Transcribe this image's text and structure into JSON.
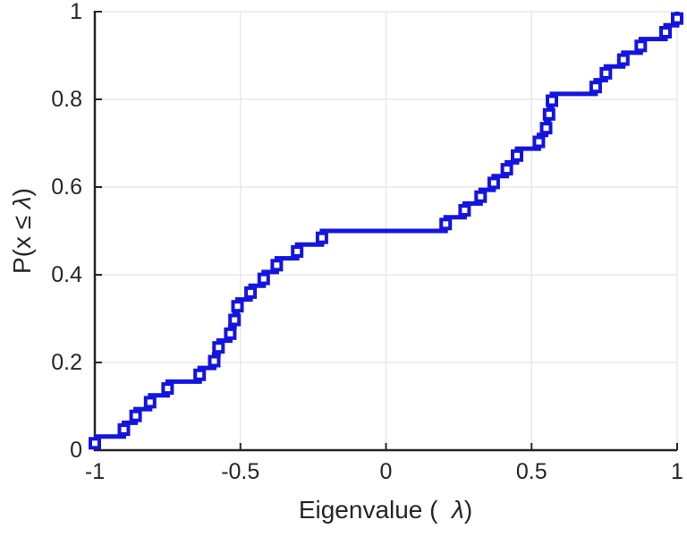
{
  "chart_data": {
    "type": "line",
    "subtype": "ecdf-stairs",
    "title": "",
    "xlabel": {
      "prefix": "Eigenvalue (  ",
      "lambda": "λ",
      "suffix": ")"
    },
    "ylabel": {
      "prefix": "P(x ≤ ",
      "lambda": "λ",
      "suffix": ")"
    },
    "n_points": 32,
    "eigenvalues": [
      -1.0,
      -0.9,
      -0.86,
      -0.81,
      -0.75,
      -0.64,
      -0.59,
      -0.575,
      -0.535,
      -0.52,
      -0.51,
      -0.465,
      -0.42,
      -0.375,
      -0.305,
      -0.22,
      0.205,
      0.27,
      0.325,
      0.37,
      0.415,
      0.45,
      0.525,
      0.55,
      0.56,
      0.57,
      0.72,
      0.755,
      0.815,
      0.875,
      0.96,
      1.0
    ],
    "cumulative_probability_step": 0.03125,
    "plateau": {
      "y": 0.5,
      "x_from": -0.22,
      "x_to": 0.205
    },
    "xlim": [
      -1,
      1
    ],
    "ylim": [
      0,
      1
    ],
    "grid": true,
    "legend": null,
    "xticks": [
      {
        "v": -1,
        "label": "-1"
      },
      {
        "v": -0.5,
        "label": "-0.5"
      },
      {
        "v": 0,
        "label": "0"
      },
      {
        "v": 0.5,
        "label": "0.5"
      },
      {
        "v": 1,
        "label": "1"
      }
    ],
    "yticks": [
      {
        "v": 0,
        "label": "0"
      },
      {
        "v": 0.2,
        "label": "0.2"
      },
      {
        "v": 0.4,
        "label": "0.4"
      },
      {
        "v": 0.6,
        "label": "0.6"
      },
      {
        "v": 0.8,
        "label": "0.8"
      },
      {
        "v": 1,
        "label": "1"
      }
    ],
    "colors": {
      "line": "#1414e0",
      "marker_face": "#ffffff",
      "axis": "#262626",
      "grid": "#e8e8e8",
      "background": "#ffffff"
    },
    "marker": "square-open"
  }
}
